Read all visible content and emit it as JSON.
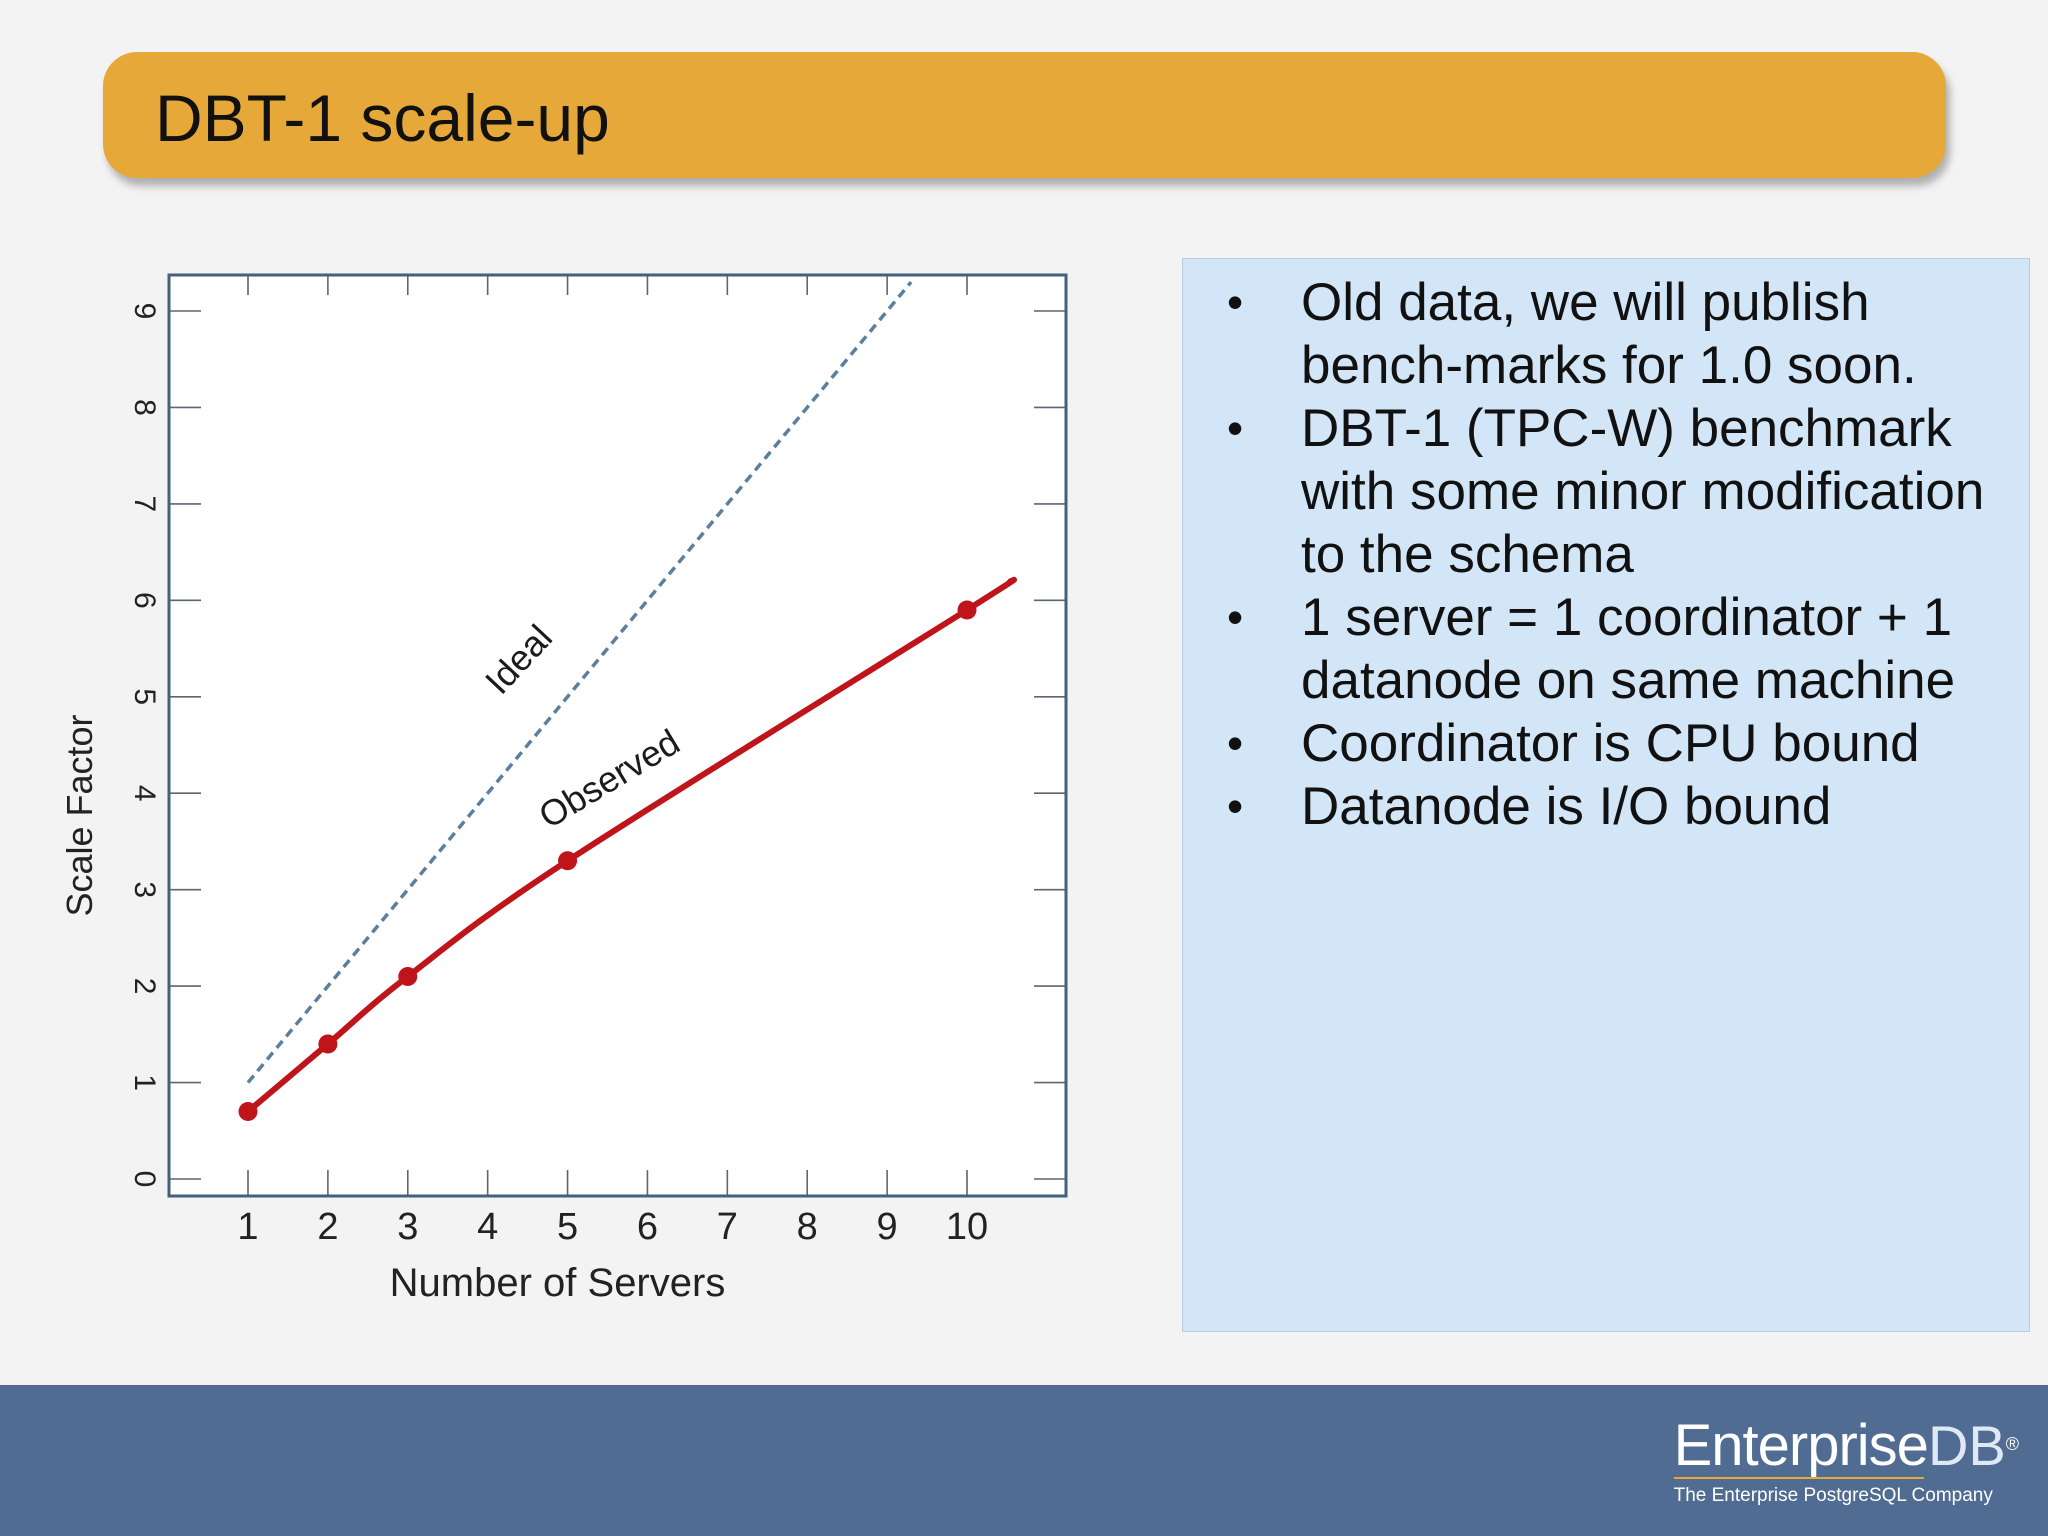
{
  "slide": {
    "title": "DBT-1 scale-up",
    "notes": [
      "Old data, we will publish bench-marks for 1.0 soon.",
      "DBT-1 (TPC-W) benchmark with some minor modification to the schema",
      "1 server = 1 coordinator + 1 datanode on same machine",
      "Coordinator is CPU bound",
      "Datanode is I/O bound"
    ],
    "bullet_glyph": "•"
  },
  "footer": {
    "logo_word": "Enterprise",
    "logo_db": "DB",
    "logo_reg": "®",
    "logo_tagline": "The Enterprise PostgreSQL Company"
  },
  "colors": {
    "title_bar": "#e6a838",
    "notes_bg": "#d3e6f7",
    "footer_bg": "#506c93",
    "observed_line": "#c0141b",
    "ideal_line": "#5c7f9e"
  },
  "chart_data": {
    "type": "line",
    "xlabel": "Number of Servers",
    "ylabel": "Scale Factor",
    "xlim": [
      0,
      11
    ],
    "ylim": [
      0,
      9.3
    ],
    "xticks": [
      1,
      2,
      3,
      4,
      5,
      6,
      7,
      8,
      9,
      10
    ],
    "yticks": [
      0,
      1,
      2,
      3,
      4,
      5,
      6,
      7,
      8,
      9
    ],
    "grid": false,
    "series": [
      {
        "name": "Ideal",
        "style": "dashed",
        "color": "#5c7f9e",
        "x": [
          1,
          9.3
        ],
        "y": [
          1,
          9.3
        ],
        "markers": false
      },
      {
        "name": "Observed",
        "style": "solid",
        "color": "#c0141b",
        "x": [
          1,
          2,
          3,
          5,
          10
        ],
        "y": [
          0.7,
          1.4,
          2.1,
          3.3,
          5.9
        ],
        "markers": true,
        "extends_to": [
          10.55,
          6.2
        ]
      }
    ]
  }
}
